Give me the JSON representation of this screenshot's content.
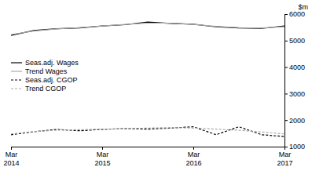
{
  "chart_data": {
    "type": "line",
    "y_label": "$m",
    "categories": [
      "Mar 2014",
      null,
      null,
      null,
      "Mar 2015",
      null,
      null,
      null,
      "Mar 2016",
      null,
      null,
      null,
      "Mar 2017"
    ],
    "ylim": [
      1000,
      6000
    ],
    "yticks": [
      1000,
      2000,
      3000,
      4000,
      5000,
      6000
    ],
    "legend": "left",
    "series": [
      {
        "name": "Seas.adj. Wages",
        "color": "#000000",
        "line_style": "solid",
        "values": [
          5200,
          5380,
          5450,
          5480,
          5550,
          5600,
          5700,
          5650,
          5620,
          5520,
          5480,
          5460,
          5550
        ]
      },
      {
        "name": "Trend Wages",
        "color": "#aaaaaa",
        "line_style": "solid",
        "values": [
          5230,
          5360,
          5440,
          5490,
          5550,
          5610,
          5660,
          5660,
          5610,
          5540,
          5490,
          5480,
          5520
        ]
      },
      {
        "name": "Seas.adj. CGOP",
        "color": "#000000",
        "line_style": "dashed",
        "values": [
          1450,
          1560,
          1650,
          1600,
          1650,
          1680,
          1660,
          1700,
          1750,
          1450,
          1750,
          1450,
          1380
        ]
      },
      {
        "name": "Trend CGOP",
        "color": "#aaaaaa",
        "line_style": "dashed",
        "values": [
          1480,
          1570,
          1620,
          1640,
          1660,
          1680,
          1700,
          1720,
          1700,
          1660,
          1620,
          1550,
          1480
        ]
      }
    ]
  }
}
